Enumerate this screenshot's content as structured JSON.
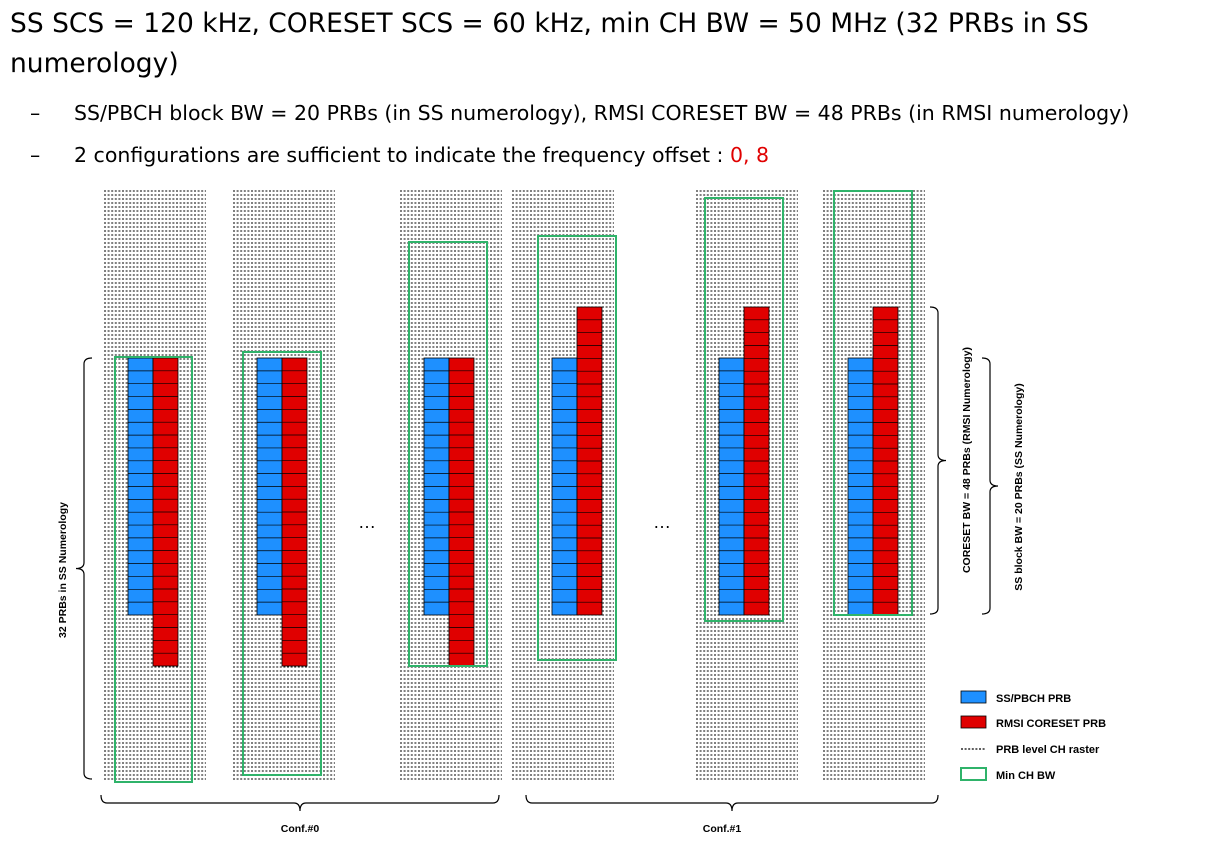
{
  "title": "SS SCS = 120 kHz, CORESET SCS = 60 kHz, min CH BW = 50 MHz (32 PRBs in SS numerology)",
  "bullets": [
    {
      "dash": "–",
      "text": "SS/PBCH block BW = 20 PRBs (in SS numerology), RMSI CORESET BW = 48 PRBs (in RMSI numerology)"
    },
    {
      "dash": "–",
      "text": "2 configurations are sufficient to indicate the frequency offset : ",
      "highlight": "0, 8"
    }
  ],
  "diagram": {
    "ellipsis": "…",
    "left_brace_label": "32 PRBs in SS Numerology",
    "right_labels": {
      "coreset": "CORESET BW = 48 PRBs (RMSI Numerology)",
      "ss_block": "SS block BW = 20 PRBs (SS Numerology)"
    },
    "groups": [
      "Conf.#0",
      "Conf.#1"
    ],
    "legend": [
      {
        "key": "ss",
        "label": "SS/PBCH PRB",
        "color": "#1e90ff"
      },
      {
        "key": "rmsi",
        "label": "RMSI CORESET PRB",
        "color": "#e00000"
      },
      {
        "key": "raster",
        "label": "PRB level CH raster",
        "color": "#000000"
      },
      {
        "key": "minbw",
        "label": "Min CH BW",
        "color": "#2fb36a"
      }
    ],
    "colors": {
      "ss": "#1e90ff",
      "rmsi": "#e00000",
      "minbw": "#2fb36a",
      "raster": "#000000"
    }
  }
}
